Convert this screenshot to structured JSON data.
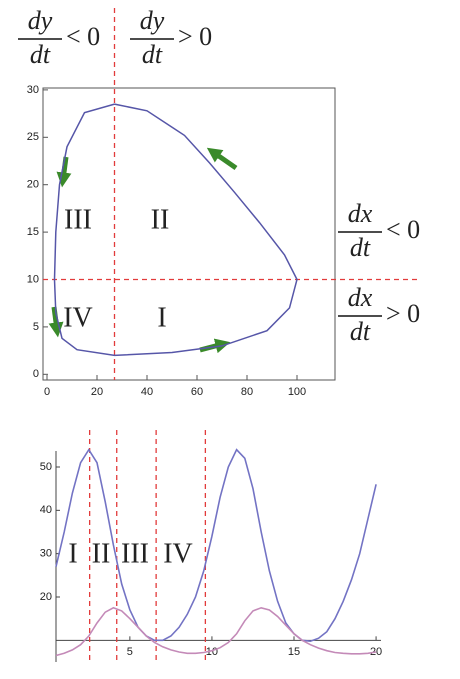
{
  "chart_data": [
    {
      "type": "line",
      "x": [
        27,
        40,
        55,
        65,
        75,
        85,
        95,
        100,
        97,
        88,
        70,
        50,
        27,
        12,
        6,
        3.5,
        3,
        3.5,
        5,
        8,
        15,
        27
      ],
      "series": [
        {
          "color": "#5656a8",
          "values": [
            28.5,
            27.8,
            25.2,
            22.3,
            19.2,
            16,
            12.6,
            10,
            7,
            4.6,
            3,
            2.3,
            2,
            2.6,
            3.8,
            6.5,
            10,
            15,
            20,
            24,
            27.6,
            28.5
          ]
        }
      ],
      "xlim": [
        -1.6,
        115.2
      ],
      "ylim": [
        -0.6,
        30.2
      ],
      "xticks": [
        0,
        20,
        40,
        60,
        80,
        100
      ],
      "yticks": [
        0,
        5,
        10,
        15,
        20,
        25,
        30
      ],
      "dashed_x": 27,
      "dashed_y": 10,
      "dash_color": "#e23b3b",
      "regions": [
        "III",
        "II",
        "IV",
        "I"
      ],
      "conditions": [
        {
          "numerator": "dy",
          "denominator": "dt",
          "relation": "< 0"
        },
        {
          "numerator": "dy",
          "denominator": "dt",
          "relation": "> 0"
        },
        {
          "numerator": "dx",
          "denominator": "dt",
          "relation": "< 0"
        },
        {
          "numerator": "dx",
          "denominator": "dt",
          "relation": "> 0"
        }
      ]
    },
    {
      "type": "line",
      "x": [
        0.5,
        1,
        1.5,
        2,
        2.5,
        3,
        3.5,
        4,
        4.5,
        5,
        5.5,
        6,
        6.5,
        7,
        7.5,
        8,
        8.5,
        9,
        9.5,
        10,
        10.5,
        11,
        11.5,
        12,
        12.5,
        13,
        13.5,
        14,
        14.5,
        15,
        15.5,
        16,
        16.5,
        17,
        17.5,
        18,
        18.5,
        19,
        19.5,
        20
      ],
      "series": [
        {
          "color": "#7373c4",
          "values": [
            27,
            35,
            44,
            51,
            54,
            51,
            42,
            32,
            23,
            17,
            13,
            11,
            10,
            10,
            11,
            13,
            16,
            20,
            26,
            34,
            43,
            50,
            54,
            52,
            45,
            35,
            26,
            19,
            14,
            11.5,
            10,
            9.8,
            10.5,
            12,
            15,
            19,
            24,
            30,
            38,
            46
          ]
        },
        {
          "color": "#c48ab8",
          "values": [
            6.5,
            7,
            7.8,
            9,
            11,
            14,
            16.5,
            17.5,
            16.8,
            15,
            13,
            11,
            9.5,
            8.5,
            7.8,
            7.3,
            7,
            7,
            7.2,
            7.6,
            8.3,
            9.5,
            11.5,
            14.5,
            16.8,
            17.5,
            17,
            15.5,
            13.5,
            11.5,
            10,
            9,
            8.2,
            7.6,
            7.2,
            7,
            6.9,
            6.9,
            7,
            7.3
          ]
        }
      ],
      "xlim": [
        0.5,
        20.3
      ],
      "ylim": [
        5,
        56
      ],
      "axis_y": 10,
      "xticks": [
        5,
        10,
        15,
        20
      ],
      "yticks": [
        20,
        30,
        40,
        50
      ],
      "vlines": [
        2.55,
        4.2,
        6.6,
        9.6
      ],
      "dash_color": "#e23b3b",
      "regions": [
        "I",
        "II",
        "III",
        "IV"
      ]
    }
  ]
}
